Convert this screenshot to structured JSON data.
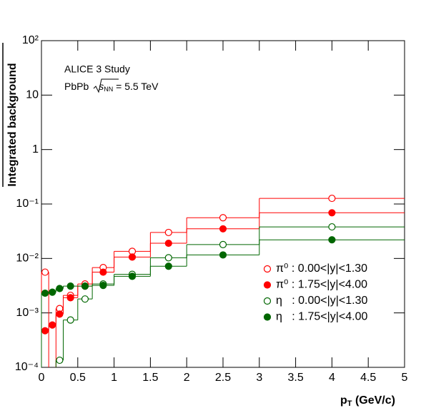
{
  "chart_data": {
    "type": "step",
    "y_label": "Integrated background",
    "x_label": [
      "p",
      "T",
      " (GeV/c)"
    ],
    "annotations": [
      "ALICE 3 Study",
      "PbPb",
      "s",
      "NN",
      " = 5.5 TeV"
    ],
    "log_y": true,
    "xlim": [
      0,
      5
    ],
    "ylim": [
      0.0001,
      100
    ],
    "xticks": [
      0,
      0.5,
      1,
      1.5,
      2,
      2.5,
      3,
      3.5,
      4,
      4.5,
      5
    ],
    "yticks": [
      {
        "value": 0.0001,
        "label": "10⁻⁴"
      },
      {
        "value": 0.001,
        "label": "10⁻³"
      },
      {
        "value": 0.01,
        "label": "10⁻²"
      },
      {
        "value": 0.1,
        "label": "10⁻¹"
      },
      1,
      10,
      {
        "value": 100,
        "label": "10²"
      }
    ],
    "bins": [
      0,
      0.1,
      0.2,
      0.3,
      0.5,
      0.7,
      1,
      1.5,
      2,
      3,
      5
    ],
    "x": [
      0.05,
      0.15,
      0.25,
      0.4,
      0.6,
      0.85,
      1.25,
      1.75,
      2.5,
      4
    ],
    "series": [
      {
        "name": "π⁰ : 0.00<|y|<1.30",
        "color": "#ff0000",
        "marker": "open",
        "values": [
          0.0056,
          null,
          0.0012,
          0.0021,
          0.0034,
          0.0068,
          0.0135,
          0.03,
          0.056,
          0.127
        ]
      },
      {
        "name": "π⁰ : 1.75<|y|<4.00",
        "color": "#ff0000",
        "marker": "filled",
        "values": [
          0.00047,
          0.0006,
          0.00095,
          0.0019,
          0.0031,
          0.0056,
          0.0106,
          0.019,
          0.035,
          0.069
        ]
      },
      {
        "name": "η   : 0.00<|y|<1.30",
        "color": "#006600",
        "marker": "open",
        "values": [
          null,
          null,
          0.000135,
          0.00074,
          0.0018,
          0.0034,
          0.0051,
          0.0103,
          0.018,
          0.038
        ]
      },
      {
        "name": "η   : 1.75<|y|<4.00",
        "color": "#006600",
        "marker": "filled",
        "values": [
          0.0023,
          0.0024,
          0.0028,
          0.0031,
          0.0031,
          0.0032,
          0.0047,
          0.0072,
          0.0116,
          0.022
        ]
      }
    ]
  }
}
